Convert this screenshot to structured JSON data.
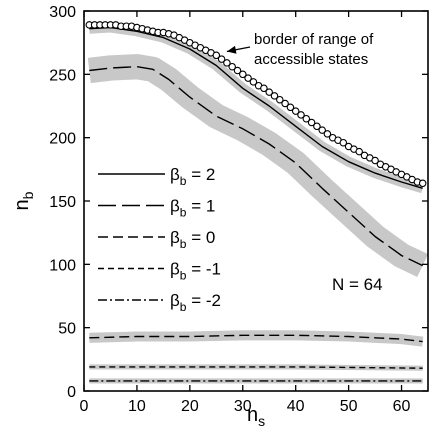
{
  "chart_data": {
    "type": "line",
    "title": "",
    "xlabel": {
      "main": "n",
      "sub": "s"
    },
    "ylabel": {
      "main": "n",
      "sub": "b"
    },
    "xlim": [
      0,
      65
    ],
    "ylim": [
      0,
      300
    ],
    "xticks": [
      0,
      10,
      20,
      30,
      40,
      50,
      60
    ],
    "yticks": [
      0,
      50,
      100,
      150,
      200,
      250,
      300
    ],
    "grid": false,
    "legend_position": "left",
    "annotations": [
      {
        "text_lines": [
          "border of range of",
          "accessible states"
        ],
        "points_to": {
          "x": 27,
          "y": 268
        }
      },
      {
        "text": "N = 64"
      }
    ],
    "series": [
      {
        "name": "βb = 2",
        "legend": {
          "main": "β",
          "sub": "b",
          "rest": " = 2"
        },
        "style": "solid",
        "band_width": 4,
        "x": [
          1,
          5,
          10,
          15,
          20,
          25,
          30,
          35,
          40,
          45,
          50,
          55,
          60,
          64
        ],
        "y": [
          286,
          287,
          284,
          279,
          270,
          257,
          239,
          225,
          209,
          193,
          181,
          172,
          165,
          160
        ]
      },
      {
        "name": "βb = 1",
        "legend": {
          "main": "β",
          "sub": "b",
          "rest": " = 1"
        },
        "style": "long-dash",
        "band_width": 10,
        "x": [
          1,
          5,
          10,
          13,
          16,
          20,
          25,
          30,
          35,
          40,
          45,
          50,
          55,
          60,
          64
        ],
        "y": [
          253,
          255,
          256,
          254,
          246,
          232,
          217,
          207,
          195,
          180,
          160,
          141,
          122,
          107,
          99
        ]
      },
      {
        "name": "βb = 0",
        "legend": {
          "main": "β",
          "sub": "b",
          "rest": " = 0"
        },
        "style": "medium-dash",
        "band_width": 4,
        "x": [
          1,
          10,
          20,
          30,
          40,
          50,
          55,
          60,
          64
        ],
        "y": [
          42,
          43,
          43,
          44,
          44,
          43,
          42,
          41,
          39
        ]
      },
      {
        "name": "βb = -1",
        "legend": {
          "main": "β",
          "sub": "b",
          "rest": " = -1"
        },
        "style": "short-dash",
        "band_width": 2,
        "x": [
          1,
          20,
          40,
          64
        ],
        "y": [
          19,
          19,
          19,
          18
        ]
      },
      {
        "name": "βb = -2",
        "legend": {
          "main": "β",
          "sub": "b",
          "rest": " = -2"
        },
        "style": "dash-dot",
        "band_width": 2,
        "x": [
          1,
          20,
          40,
          64
        ],
        "y": [
          8,
          8,
          8,
          8
        ]
      }
    ],
    "border_markers": {
      "marker": "open-circle",
      "x": [
        1,
        2,
        3,
        4,
        5,
        6,
        7,
        8,
        9,
        10,
        11,
        12,
        13,
        14,
        15,
        16,
        17,
        18,
        19,
        20,
        21,
        22,
        23,
        24,
        25,
        26,
        27,
        28,
        29,
        30,
        31,
        32,
        33,
        34,
        35,
        36,
        37,
        38,
        39,
        40,
        41,
        42,
        43,
        44,
        45,
        46,
        47,
        48,
        49,
        50,
        51,
        52,
        53,
        54,
        55,
        56,
        57,
        58,
        59,
        60,
        61,
        62,
        63,
        64
      ],
      "y": [
        289,
        289,
        289,
        289,
        289,
        289,
        288,
        288,
        288,
        287,
        286,
        285,
        284,
        283,
        283,
        282,
        281,
        279,
        277,
        275,
        273,
        271,
        269,
        267,
        265,
        262,
        259,
        256,
        253,
        250,
        247,
        244,
        241,
        239,
        236,
        233,
        230,
        227,
        224,
        221,
        218,
        215,
        212,
        209,
        206,
        203,
        200,
        198,
        196,
        193,
        191,
        189,
        186,
        184,
        182,
        179,
        177,
        175,
        173,
        171,
        169,
        167,
        165,
        164
      ]
    }
  }
}
